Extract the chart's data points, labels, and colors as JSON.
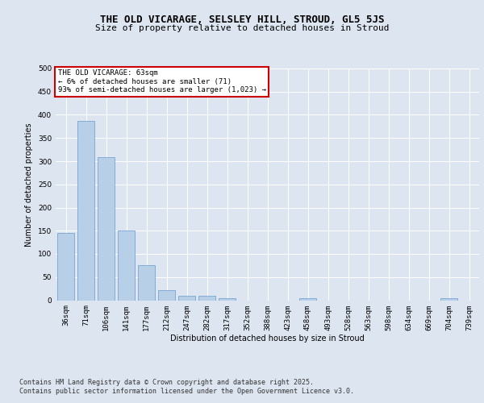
{
  "title": "THE OLD VICARAGE, SELSLEY HILL, STROUD, GL5 5JS",
  "subtitle": "Size of property relative to detached houses in Stroud",
  "xlabel": "Distribution of detached houses by size in Stroud",
  "ylabel": "Number of detached properties",
  "categories": [
    "36sqm",
    "71sqm",
    "106sqm",
    "141sqm",
    "177sqm",
    "212sqm",
    "247sqm",
    "282sqm",
    "317sqm",
    "352sqm",
    "388sqm",
    "423sqm",
    "458sqm",
    "493sqm",
    "528sqm",
    "563sqm",
    "598sqm",
    "634sqm",
    "669sqm",
    "704sqm",
    "739sqm"
  ],
  "bar_values": [
    145,
    387,
    308,
    150,
    75,
    22,
    10,
    10,
    5,
    0,
    0,
    0,
    5,
    0,
    0,
    0,
    0,
    0,
    0,
    5,
    0
  ],
  "bar_color": "#b8cfe8",
  "bar_edge_color": "#6699cc",
  "annotation_title": "THE OLD VICARAGE: 63sqm",
  "annotation_line1": "← 6% of detached houses are smaller (71)",
  "annotation_line2": "93% of semi-detached houses are larger (1,023) →",
  "annotation_box_color": "#ffffff",
  "annotation_box_edge_color": "#cc0000",
  "ylim": [
    0,
    500
  ],
  "yticks": [
    0,
    50,
    100,
    150,
    200,
    250,
    300,
    350,
    400,
    450,
    500
  ],
  "background_color": "#dde5f0",
  "plot_bg_color": "#dde5f0",
  "footer_line1": "Contains HM Land Registry data © Crown copyright and database right 2025.",
  "footer_line2": "Contains public sector information licensed under the Open Government Licence v3.0.",
  "title_fontsize": 9,
  "subtitle_fontsize": 8,
  "axis_fontsize": 7,
  "tick_fontsize": 6.5,
  "annotation_fontsize": 6.5,
  "footer_fontsize": 6
}
